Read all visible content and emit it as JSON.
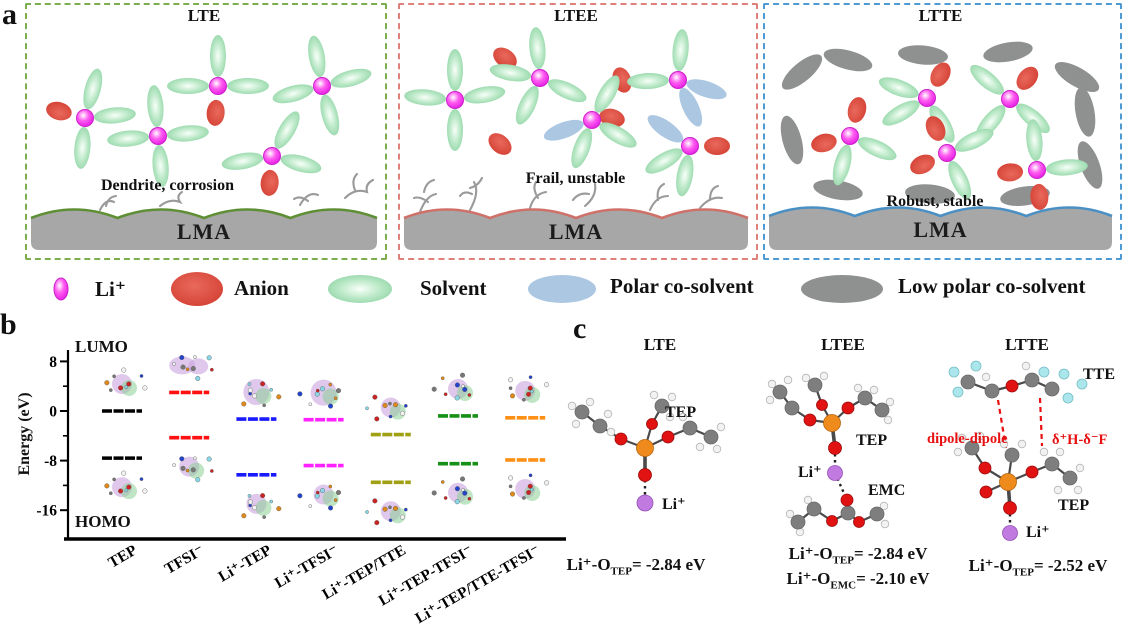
{
  "panel_a": {
    "label": "a",
    "boxes": [
      {
        "title": "LTE",
        "caption": "Dendrite, corrosion",
        "substrate": "LMA",
        "border_color": "#7cae4e"
      },
      {
        "title": "LTEE",
        "caption": "Frail, unstable",
        "substrate": "LMA",
        "border_color": "#df807a"
      },
      {
        "title": "LTTE",
        "caption": "Robust, stable",
        "substrate": "LMA",
        "border_color": "#4e9ad2"
      }
    ],
    "legend": [
      {
        "name": "li-ion",
        "label": "Li⁺",
        "color": "#ee22ee"
      },
      {
        "name": "anion",
        "label": "Anion",
        "color": "#d23f32"
      },
      {
        "name": "solvent",
        "label": "Solvent",
        "color": "#8fd3a5"
      },
      {
        "name": "polar-co-solvent",
        "label": "Polar co-solvent",
        "color": "#abc7e2"
      },
      {
        "name": "low-polar-co-solvent",
        "label": "Low polar co-solvent",
        "color": "#8f9090"
      }
    ]
  },
  "panel_b": {
    "label": "b"
  },
  "chart_data": {
    "type": "energy-level",
    "title": "",
    "ylabel": "Energy (eV)",
    "ylim": [
      -20,
      10
    ],
    "yticks": [
      8,
      0,
      -8,
      -16
    ],
    "minor_ticks": [
      4,
      -4,
      -12
    ],
    "annotations": {
      "top": "LUMO",
      "bottom": "HOMO"
    },
    "categories": [
      "TEP",
      "TFSI⁻",
      "Li⁺-TEP",
      "Li⁺-TFSI⁻",
      "Li⁺-TEP/TTE",
      "Li⁺-TEP-TFSI⁻",
      "Li⁺-TEP/TTE-TFSI⁻"
    ],
    "series": [
      {
        "name": "LUMO",
        "values": [
          0.0,
          3.0,
          -1.3,
          -1.4,
          -3.8,
          -0.8,
          -1.1
        ]
      },
      {
        "name": "HOMO",
        "values": [
          -7.6,
          -4.3,
          -10.3,
          -8.8,
          -11.5,
          -8.5,
          -7.9
        ]
      }
    ],
    "level_colors": [
      "#000000",
      "#ff1111",
      "#1a1aff",
      "#ff22ff",
      "#a0a014",
      "#169016",
      "#ff9016"
    ],
    "legend_position": "none",
    "grid": false
  },
  "panel_c": {
    "label": "c",
    "columns": [
      {
        "title": "LTE",
        "molecule_labels": {
          "solvent": "TEP",
          "ion": "Li⁺"
        },
        "energies": [
          {
            "prefix": "Li⁺-O",
            "sub": "TEP",
            "suffix": "= -2.84 eV"
          }
        ]
      },
      {
        "title": "LTEE",
        "molecule_labels": {
          "solvent": "TEP",
          "ion": "Li⁺",
          "cosolvent": "EMC"
        },
        "energies": [
          {
            "prefix": "Li⁺-O",
            "sub": "TEP",
            "suffix": "= -2.84 eV"
          },
          {
            "prefix": "Li⁺-O",
            "sub": "EMC",
            "suffix": "= -2.10 eV"
          }
        ]
      },
      {
        "title": "LTTE",
        "molecule_labels": {
          "cosolvent": "TTE",
          "solvent": "TEP",
          "ion": "Li⁺"
        },
        "annotations": [
          {
            "text": "dipole-dipole",
            "color": "#e81010"
          },
          {
            "text": "δ⁺H-δ⁻F",
            "color": "#e81010"
          }
        ],
        "energies": [
          {
            "prefix": "Li⁺-O",
            "sub": "TEP",
            "suffix": "= -2.52 eV"
          }
        ]
      }
    ]
  }
}
